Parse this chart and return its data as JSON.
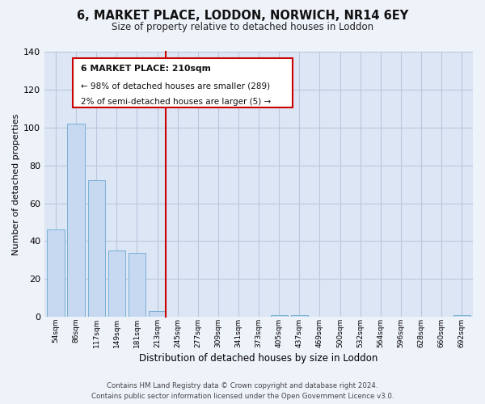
{
  "title": "6, MARKET PLACE, LODDON, NORWICH, NR14 6EY",
  "subtitle": "Size of property relative to detached houses in Loddon",
  "xlabel": "Distribution of detached houses by size in Loddon",
  "ylabel": "Number of detached properties",
  "bar_labels": [
    "54sqm",
    "86sqm",
    "117sqm",
    "149sqm",
    "181sqm",
    "213sqm",
    "245sqm",
    "277sqm",
    "309sqm",
    "341sqm",
    "373sqm",
    "405sqm",
    "437sqm",
    "469sqm",
    "500sqm",
    "532sqm",
    "564sqm",
    "596sqm",
    "628sqm",
    "660sqm",
    "692sqm"
  ],
  "bar_values": [
    46,
    102,
    72,
    35,
    34,
    3,
    0,
    0,
    0,
    0,
    0,
    1,
    1,
    0,
    0,
    0,
    0,
    0,
    0,
    0,
    1
  ],
  "bar_color": "#c6d9f0",
  "bar_edge_color": "#7ab0d4",
  "highlight_bar_index": 5,
  "highlight_line_color": "#cc0000",
  "ylim": [
    0,
    140
  ],
  "yticks": [
    0,
    20,
    40,
    60,
    80,
    100,
    120,
    140
  ],
  "annotation_line1": "6 MARKET PLACE: 210sqm",
  "annotation_line2": "← 98% of detached houses are smaller (289)",
  "annotation_line3": "2% of semi-detached houses are larger (5) →",
  "footer_line1": "Contains HM Land Registry data © Crown copyright and database right 2024.",
  "footer_line2": "Contains public sector information licensed under the Open Government Licence v3.0.",
  "background_color": "#eef2f9",
  "plot_background_color": "#dce6f5",
  "grid_color": "#b8c8dc"
}
